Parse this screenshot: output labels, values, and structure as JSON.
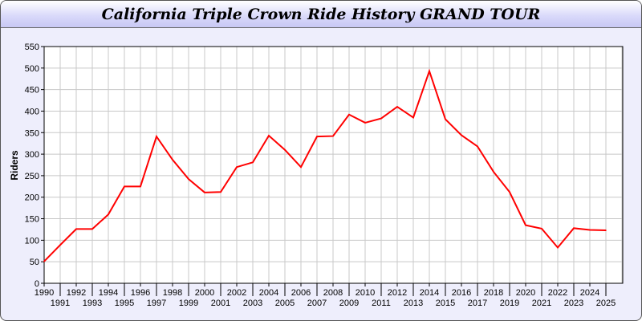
{
  "chart_data": {
    "type": "line",
    "title": "California Triple Crown Ride History GRAND TOUR",
    "xlabel": "",
    "ylabel": "Riders",
    "ylim": [
      0,
      550
    ],
    "yticks": [
      0,
      50,
      100,
      150,
      200,
      250,
      300,
      350,
      400,
      450,
      500,
      550
    ],
    "grid": true,
    "line_color": "#ff0000",
    "x": [
      "1990",
      "1991",
      "1992",
      "1993",
      "1994",
      "1995",
      "1996",
      "1997",
      "1998",
      "1999",
      "2000",
      "2001",
      "2002",
      "2003",
      "2004",
      "2005",
      "2006",
      "2007",
      "2008",
      "2009",
      "2010",
      "2011",
      "2012",
      "2013",
      "2014",
      "2015",
      "2016",
      "2017",
      "2018",
      "2019",
      "2020",
      "2021",
      "2022",
      "2023",
      "2024",
      "2025"
    ],
    "series": [
      {
        "values": [
          51,
          89,
          126,
          126,
          160,
          225,
          225,
          341,
          287,
          242,
          211,
          212,
          270,
          281,
          343,
          310,
          270,
          341,
          342,
          392,
          373,
          383,
          410,
          385,
          493,
          381,
          344,
          318,
          259,
          212,
          135,
          127,
          83,
          128,
          124,
          123
        ]
      }
    ]
  }
}
